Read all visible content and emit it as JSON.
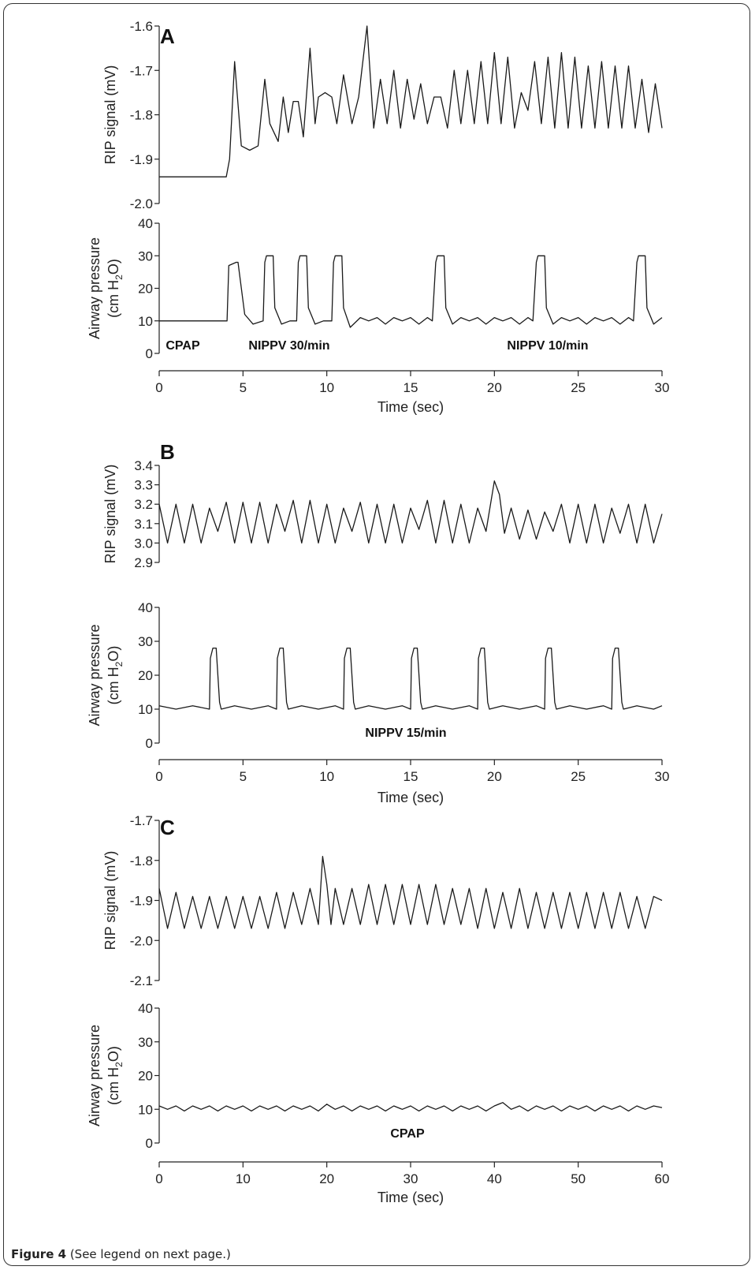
{
  "caption": {
    "label": "Figure 4",
    "text": "(See legend on next page.)"
  },
  "chart_data": [
    {
      "type": "line",
      "panel": "A",
      "xlabel": "Time (sec)",
      "xlim": [
        0,
        30
      ],
      "xticks": [
        0,
        5,
        10,
        15,
        20,
        25,
        30
      ],
      "top": {
        "ylabel": "RIP signal (mV)",
        "ylim": [
          -2.0,
          -1.6
        ],
        "yticks": [
          "-2.0",
          "-1.9",
          "-1.8",
          "-1.7",
          "-1.6"
        ],
        "series": [
          {
            "x": [
              0,
              1,
              2,
              3,
              4,
              4.2,
              4.5,
              4.9,
              5.4,
              5.9,
              6.3,
              6.6,
              7.1,
              7.4,
              7.7,
              8.0,
              8.3,
              8.6,
              9.0,
              9.3,
              9.5,
              9.9,
              10.3,
              10.6,
              11.0,
              11.5,
              11.9,
              12.4,
              12.8,
              13.2,
              13.6,
              14.0,
              14.4,
              14.8,
              15.2,
              15.6,
              16.0,
              16.4,
              16.8,
              17.2,
              17.6,
              18.0,
              18.4,
              18.8,
              19.2,
              19.6,
              20.0,
              20.4,
              20.8,
              21.2,
              21.6,
              22.0,
              22.4,
              22.8,
              23.2,
              23.6,
              24.0,
              24.4,
              24.8,
              25.2,
              25.6,
              26.0,
              26.4,
              26.8,
              27.2,
              27.6,
              28.0,
              28.4,
              28.8,
              29.2,
              29.6,
              30.0
            ],
            "y": [
              -1.94,
              -1.94,
              -1.94,
              -1.94,
              -1.94,
              -1.9,
              -1.68,
              -1.87,
              -1.88,
              -1.87,
              -1.72,
              -1.82,
              -1.86,
              -1.76,
              -1.84,
              -1.77,
              -1.77,
              -1.85,
              -1.65,
              -1.82,
              -1.76,
              -1.75,
              -1.76,
              -1.82,
              -1.71,
              -1.82,
              -1.76,
              -1.6,
              -1.83,
              -1.72,
              -1.82,
              -1.7,
              -1.83,
              -1.72,
              -1.81,
              -1.73,
              -1.82,
              -1.76,
              -1.76,
              -1.83,
              -1.7,
              -1.82,
              -1.7,
              -1.82,
              -1.68,
              -1.82,
              -1.66,
              -1.82,
              -1.67,
              -1.83,
              -1.75,
              -1.79,
              -1.68,
              -1.82,
              -1.67,
              -1.83,
              -1.66,
              -1.83,
              -1.67,
              -1.83,
              -1.69,
              -1.83,
              -1.68,
              -1.83,
              -1.69,
              -1.83,
              -1.69,
              -1.83,
              -1.72,
              -1.84,
              -1.73,
              -1.83
            ]
          }
        ]
      },
      "bottom": {
        "ylabel_line1": "Airway pressure",
        "ylabel_line2": "(cm H",
        "ylabel_sub": "2",
        "ylabel_end": "O)",
        "ylim": [
          0,
          40
        ],
        "yticks": [
          "0",
          "10",
          "20",
          "30",
          "40"
        ],
        "series": [
          {
            "x": [
              0,
              4,
              4.05,
              4.15,
              4.6,
              4.7,
              5.1,
              5.6,
              6.2,
              6.3,
              6.4,
              6.8,
              6.9,
              7.3,
              7.8,
              8.2,
              8.3,
              8.4,
              8.8,
              8.9,
              9.3,
              9.8,
              10.3,
              10.4,
              10.5,
              10.9,
              11.0,
              11.4,
              12,
              12.5,
              13,
              13.5,
              14,
              14.5,
              15,
              15.5,
              16,
              16.3,
              16.5,
              16.6,
              17.0,
              17.1,
              17.5,
              18,
              18.5,
              19,
              19.5,
              20,
              20.5,
              21,
              21.5,
              22,
              22.3,
              22.5,
              22.6,
              23.0,
              23.1,
              23.5,
              24,
              24.5,
              25,
              25.5,
              26,
              26.5,
              27,
              27.5,
              28,
              28.3,
              28.5,
              28.6,
              29.0,
              29.1,
              29.5,
              30
            ],
            "y": [
              10,
              10,
              10,
              27,
              28,
              28,
              12,
              9,
              10,
              28,
              30,
              30,
              14,
              9,
              10,
              10,
              28,
              30,
              30,
              14,
              9,
              10,
              10,
              28,
              30,
              30,
              14,
              8,
              11,
              10,
              11,
              9,
              11,
              10,
              11,
              9,
              11,
              10,
              28,
              30,
              30,
              14,
              9,
              11,
              10,
              11,
              9,
              11,
              10,
              11,
              9,
              11,
              10,
              28,
              30,
              30,
              14,
              9,
              11,
              10,
              11,
              9,
              11,
              10,
              11,
              9,
              11,
              10,
              28,
              30,
              30,
              14,
              9,
              11
            ]
          }
        ]
      },
      "annotations": [
        "CPAP",
        "NIPPV 30/min",
        "NIPPV 10/min"
      ]
    },
    {
      "type": "line",
      "panel": "B",
      "xlabel": "Time (sec)",
      "xlim": [
        0,
        30
      ],
      "xticks": [
        0,
        5,
        10,
        15,
        20,
        25,
        30
      ],
      "top": {
        "ylabel": "RIP signal (mV)",
        "ylim": [
          2.9,
          3.4
        ],
        "yticks": [
          "2.9",
          "3.0",
          "3.1",
          "3.2",
          "3.3",
          "3.4"
        ],
        "series": [
          {
            "x": [
              0,
              0.5,
              1,
              1.5,
              2,
              2.5,
              3,
              3.5,
              4,
              4.5,
              5,
              5.5,
              6,
              6.5,
              7,
              7.5,
              8,
              8.5,
              9,
              9.5,
              10,
              10.5,
              11,
              11.5,
              12,
              12.5,
              13,
              13.5,
              14,
              14.5,
              15,
              15.5,
              16,
              16.5,
              17,
              17.5,
              18,
              18.5,
              19,
              19.5,
              20,
              20.3,
              20.6,
              21,
              21.5,
              22,
              22.5,
              23,
              23.5,
              24,
              24.5,
              25,
              25.5,
              26,
              26.5,
              27,
              27.5,
              28,
              28.5,
              29,
              29.5,
              30
            ],
            "y": [
              3.2,
              3.0,
              3.2,
              3.0,
              3.2,
              3.0,
              3.18,
              3.06,
              3.21,
              3.0,
              3.21,
              3.0,
              3.21,
              3.0,
              3.2,
              3.06,
              3.22,
              3.0,
              3.22,
              3.0,
              3.2,
              3.0,
              3.18,
              3.06,
              3.21,
              3.0,
              3.2,
              3.0,
              3.2,
              3.0,
              3.18,
              3.07,
              3.22,
              3.0,
              3.22,
              3.0,
              3.2,
              3.0,
              3.18,
              3.06,
              3.32,
              3.25,
              3.05,
              3.18,
              3.02,
              3.17,
              3.02,
              3.16,
              3.06,
              3.2,
              3.0,
              3.2,
              3.0,
              3.2,
              3.0,
              3.18,
              3.05,
              3.2,
              3.0,
              3.2,
              3.0,
              3.15
            ]
          }
        ]
      },
      "bottom": {
        "ylabel_line1": "Airway pressure",
        "ylabel_line2": "(cm H",
        "ylabel_sub": "2",
        "ylabel_end": "O)",
        "ylim": [
          0,
          40
        ],
        "yticks": [
          "0",
          "10",
          "20",
          "30",
          "40"
        ],
        "series": [
          {
            "x": [
              0,
              1,
              2,
              3,
              3.05,
              3.2,
              3.4,
              3.6,
              3.7,
              4.5,
              5.5,
              6.5,
              7.0,
              7.05,
              7.2,
              7.4,
              7.6,
              7.7,
              8.5,
              9.5,
              10.5,
              11.0,
              11.05,
              11.2,
              11.4,
              11.6,
              11.7,
              12.5,
              13.5,
              14.5,
              15.0,
              15.05,
              15.2,
              15.4,
              15.6,
              15.7,
              16.5,
              17.5,
              18.5,
              19.0,
              19.05,
              19.2,
              19.4,
              19.6,
              19.7,
              20.5,
              21.5,
              22.5,
              23.0,
              23.05,
              23.2,
              23.4,
              23.6,
              23.7,
              24.5,
              25.5,
              26.5,
              27.0,
              27.05,
              27.2,
              27.4,
              27.6,
              27.7,
              28.5,
              29.5,
              30
            ],
            "y": [
              11,
              10,
              11,
              10,
              25,
              28,
              28,
              12,
              10,
              11,
              10,
              11,
              10,
              25,
              28,
              28,
              12,
              10,
              11,
              10,
              11,
              10,
              25,
              28,
              28,
              12,
              10,
              11,
              10,
              11,
              10,
              25,
              28,
              28,
              12,
              10,
              11,
              10,
              11,
              10,
              25,
              28,
              28,
              12,
              10,
              11,
              10,
              11,
              10,
              25,
              28,
              28,
              12,
              10,
              11,
              10,
              11,
              10,
              25,
              28,
              28,
              12,
              10,
              11,
              10,
              11
            ]
          }
        ]
      },
      "annotations": [
        "NIPPV 15/min"
      ]
    },
    {
      "type": "line",
      "panel": "C",
      "xlabel": "Time (sec)",
      "xlim": [
        0,
        60
      ],
      "xticks": [
        0,
        10,
        20,
        30,
        40,
        50,
        60
      ],
      "top": {
        "ylabel": "RIP signal (mV)",
        "ylim": [
          -2.1,
          -1.7
        ],
        "yticks": [
          "-2.1",
          "-2.0",
          "-1.9",
          "-1.8",
          "-1.7"
        ],
        "series": [
          {
            "x": [
              0,
              1,
              2,
              3,
              4,
              5,
              6,
              7,
              8,
              9,
              10,
              11,
              12,
              13,
              14,
              15,
              16,
              17,
              18,
              19,
              19.5,
              20,
              20.5,
              21,
              22,
              23,
              24,
              25,
              26,
              27,
              28,
              29,
              30,
              31,
              32,
              33,
              34,
              35,
              36,
              37,
              38,
              39,
              40,
              41,
              42,
              43,
              44,
              45,
              46,
              47,
              48,
              49,
              50,
              51,
              52,
              53,
              54,
              55,
              56,
              57,
              58,
              59,
              60
            ],
            "y": [
              -1.87,
              -1.97,
              -1.88,
              -1.97,
              -1.89,
              -1.97,
              -1.89,
              -1.97,
              -1.89,
              -1.97,
              -1.89,
              -1.97,
              -1.89,
              -1.97,
              -1.88,
              -1.97,
              -1.88,
              -1.96,
              -1.87,
              -1.96,
              -1.79,
              -1.86,
              -1.96,
              -1.87,
              -1.96,
              -1.87,
              -1.96,
              -1.86,
              -1.96,
              -1.86,
              -1.96,
              -1.86,
              -1.96,
              -1.86,
              -1.96,
              -1.86,
              -1.96,
              -1.87,
              -1.96,
              -1.87,
              -1.97,
              -1.87,
              -1.97,
              -1.88,
              -1.97,
              -1.87,
              -1.97,
              -1.88,
              -1.97,
              -1.88,
              -1.97,
              -1.88,
              -1.97,
              -1.88,
              -1.97,
              -1.88,
              -1.97,
              -1.88,
              -1.97,
              -1.89,
              -1.97,
              -1.89,
              -1.9
            ]
          }
        ]
      },
      "bottom": {
        "ylabel_line1": "Airway pressure",
        "ylabel_line2": "(cm H",
        "ylabel_sub": "2",
        "ylabel_end": "O)",
        "ylim": [
          0,
          40
        ],
        "yticks": [
          "0",
          "10",
          "20",
          "30",
          "40"
        ],
        "series": [
          {
            "x": [
              0,
              1,
              2,
              3,
              4,
              5,
              6,
              7,
              8,
              9,
              10,
              11,
              12,
              13,
              14,
              15,
              16,
              17,
              18,
              19,
              20,
              21,
              22,
              23,
              24,
              25,
              26,
              27,
              28,
              29,
              30,
              31,
              32,
              33,
              34,
              35,
              36,
              37,
              38,
              39,
              40,
              41,
              42,
              43,
              44,
              45,
              46,
              47,
              48,
              49,
              50,
              51,
              52,
              53,
              54,
              55,
              56,
              57,
              58,
              59,
              60
            ],
            "y": [
              11,
              10,
              11,
              9.5,
              11,
              10,
              11,
              9.5,
              11,
              10,
              11,
              9.5,
              11,
              10,
              11,
              9.5,
              11,
              10,
              11,
              9.5,
              11.5,
              10,
              11,
              9.5,
              11,
              10,
              11,
              9.5,
              11,
              10,
              11,
              9.5,
              11,
              10,
              11,
              9.5,
              11,
              10,
              11,
              9.5,
              11,
              12,
              10,
              11,
              9.5,
              11,
              10,
              11,
              9.5,
              11,
              10,
              11,
              9.5,
              11,
              10,
              11,
              9.5,
              11,
              10,
              11,
              10.5
            ]
          }
        ]
      },
      "annotations": [
        "CPAP"
      ]
    }
  ]
}
